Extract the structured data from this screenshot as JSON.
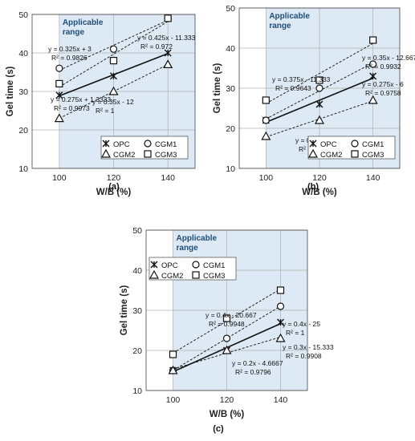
{
  "chart_data": [
    {
      "type": "scatter",
      "panel_label": "(a)",
      "xlabel": "W/B (%)",
      "ylabel": "Gel time (s)",
      "xlim": [
        90,
        150
      ],
      "ylim": [
        10,
        50
      ],
      "xticks": [
        100,
        120,
        140
      ],
      "yticks": [
        10,
        20,
        30,
        40,
        50
      ],
      "grid": true,
      "shaded_label": [
        "Applicable",
        "range"
      ],
      "legend_position": "bottom-right",
      "series": [
        {
          "name": "OPC",
          "marker": "asterisk",
          "line": "solid",
          "x": [
            100,
            120,
            140
          ],
          "y": [
            29,
            34,
            40
          ]
        },
        {
          "name": "CGM1",
          "marker": "circle",
          "line": "dashed",
          "x": [
            100,
            120,
            140
          ],
          "y": [
            36,
            41,
            49
          ]
        },
        {
          "name": "CGM2",
          "marker": "triangle",
          "line": "dashed",
          "x": [
            100,
            120,
            140
          ],
          "y": [
            23,
            30,
            37
          ]
        },
        {
          "name": "CGM3",
          "marker": "square",
          "line": "dashed",
          "x": [
            100,
            120,
            140
          ],
          "y": [
            32,
            38,
            49
          ]
        }
      ],
      "annotations": [
        {
          "eq": "y = 0.325x + 3",
          "r2": "R² = 0.9826"
        },
        {
          "eq": "y = 0.425x - 11.333",
          "r2": "R² = 0.972"
        },
        {
          "eq": "y = 0.275x + 1.3333",
          "r2": "R² = 0.9973"
        },
        {
          "eq": "y = 0.35x - 12",
          "r2": "R² = 1"
        }
      ]
    },
    {
      "type": "scatter",
      "panel_label": "(b)",
      "xlabel": "W/B (%)",
      "ylabel": "Gel time (s)",
      "xlim": [
        90,
        150
      ],
      "ylim": [
        10,
        50
      ],
      "xticks": [
        100,
        120,
        140
      ],
      "yticks": [
        10,
        20,
        30,
        40,
        50
      ],
      "grid": true,
      "shaded_label": [
        "Applicable",
        "range"
      ],
      "legend_position": "bottom-right",
      "series": [
        {
          "name": "OPC",
          "marker": "asterisk",
          "line": "solid",
          "x": [
            100,
            120,
            140
          ],
          "y": [
            22,
            26,
            33
          ]
        },
        {
          "name": "CGM1",
          "marker": "circle",
          "line": "dashed",
          "x": [
            100,
            120,
            140
          ],
          "y": [
            22,
            30,
            36
          ]
        },
        {
          "name": "CGM2",
          "marker": "triangle",
          "line": "dashed",
          "x": [
            100,
            120,
            140
          ],
          "y": [
            18,
            22,
            27
          ]
        },
        {
          "name": "CGM3",
          "marker": "square",
          "line": "dashed",
          "x": [
            100,
            120,
            140
          ],
          "y": [
            27,
            32,
            42
          ]
        }
      ],
      "annotations": [
        {
          "eq": "y = 0.375x - 11.333",
          "r2": "R² = 0.9643"
        },
        {
          "eq": "y = 0.35x - 12.667",
          "r2": "R² = 0.9932"
        },
        {
          "eq": "y = 0.275x - 6",
          "r2": "R² = 0.9758"
        },
        {
          "eq": "y = 0.225x - 4.6667",
          "r2": "R² = 0.9959"
        }
      ]
    },
    {
      "type": "scatter",
      "panel_label": "(c)",
      "xlabel": "W/B (%)",
      "ylabel": "Gel time (s)",
      "xlim": [
        90,
        150
      ],
      "ylim": [
        10,
        50
      ],
      "xticks": [
        100,
        120,
        140
      ],
      "yticks": [
        10,
        20,
        30,
        40,
        50
      ],
      "grid": true,
      "shaded_label": [
        "Applicable",
        "range"
      ],
      "legend_position": "top-right",
      "series": [
        {
          "name": "OPC",
          "marker": "asterisk",
          "line": "solid",
          "x": [
            100,
            120,
            140
          ],
          "y": [
            15,
            20,
            27
          ]
        },
        {
          "name": "CGM1",
          "marker": "circle",
          "line": "dashed",
          "x": [
            100,
            120,
            140
          ],
          "y": [
            15,
            23,
            31
          ]
        },
        {
          "name": "CGM2",
          "marker": "triangle",
          "line": "dashed",
          "x": [
            100,
            120,
            140
          ],
          "y": [
            15,
            20,
            23
          ]
        },
        {
          "name": "CGM3",
          "marker": "square",
          "line": "dashed",
          "x": [
            100,
            120,
            140
          ],
          "y": [
            19,
            28,
            35
          ]
        }
      ],
      "annotations": [
        {
          "eq": "y = 0.4x - 20.667",
          "r2": "R² = 0.9948"
        },
        {
          "eq": "y = 0.4x - 25",
          "r2": "R² = 1"
        },
        {
          "eq": "y = 0.3x - 15.333",
          "r2": "R² = 0.9908"
        },
        {
          "eq": "y = 0.2x - 4.6667",
          "r2": "R² = 0.9796"
        }
      ]
    }
  ],
  "colors": {
    "shade": "#dde9f4",
    "grid": "#b0b0b0",
    "ink": "#111111",
    "accent": "#1f4e79"
  }
}
